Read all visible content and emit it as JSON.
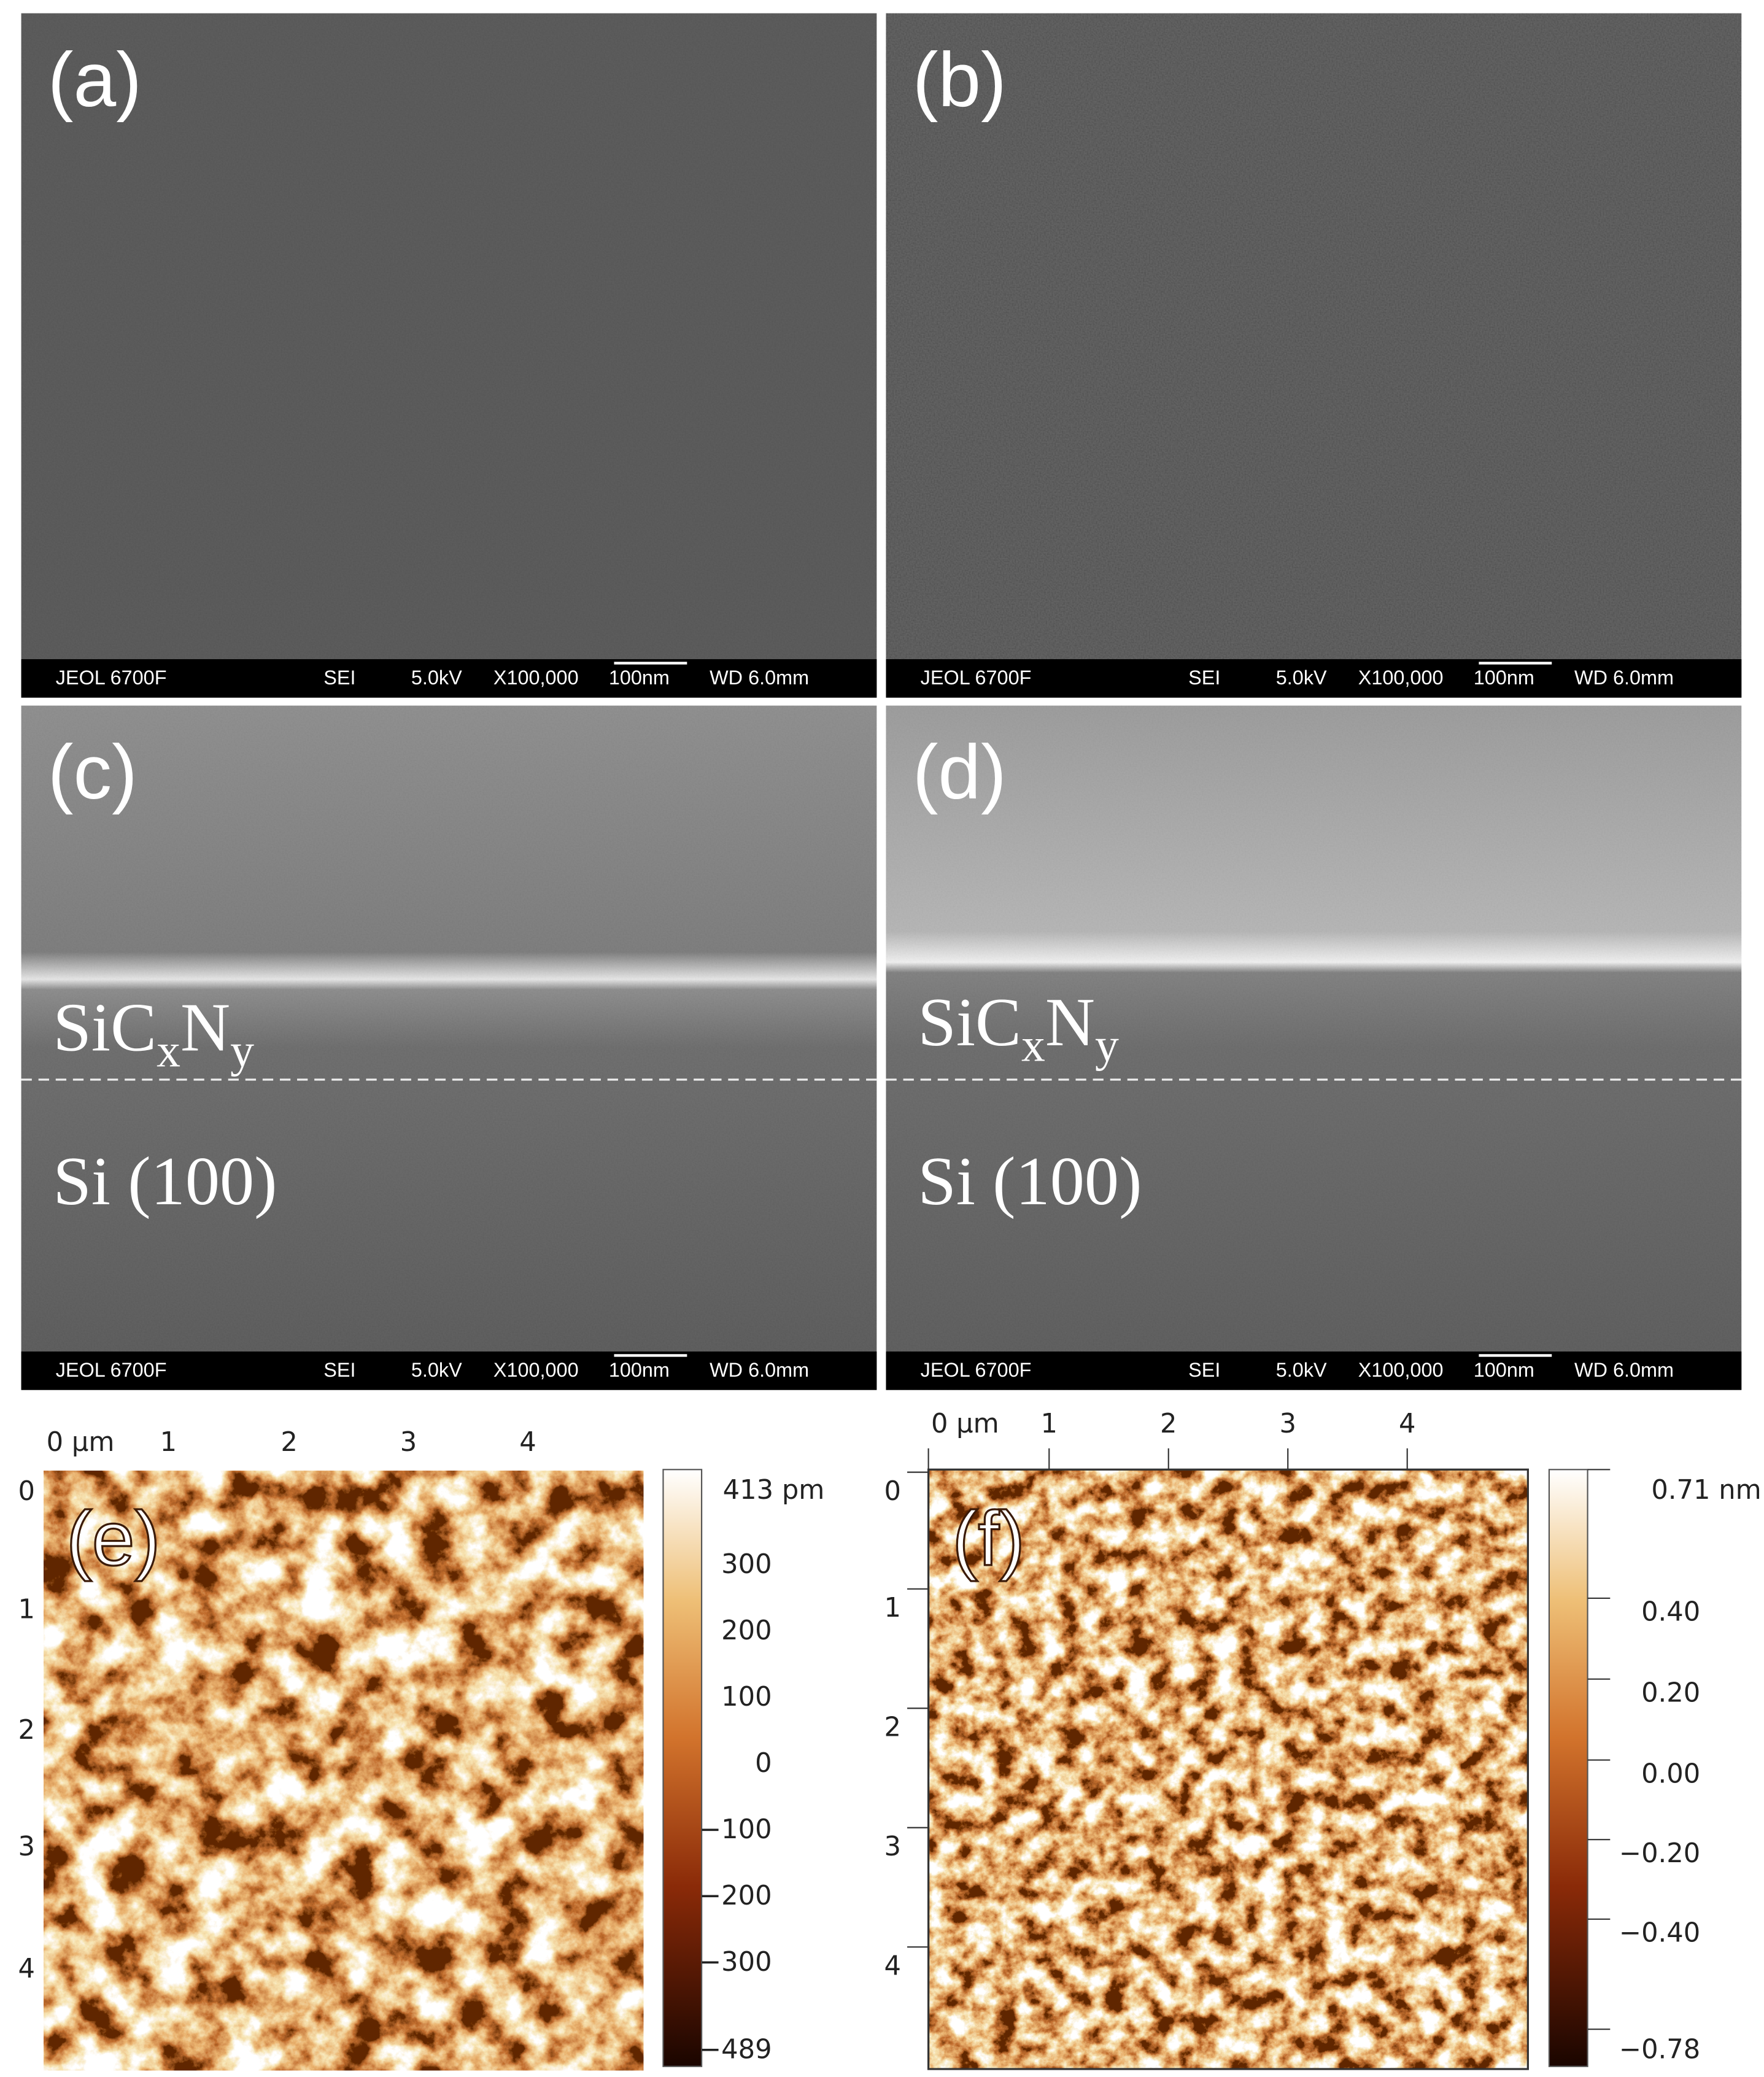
{
  "sem_panels": [
    {
      "label": "(a)"
    },
    {
      "label": "(b)"
    },
    {
      "label": "(c)",
      "film": [
        "SiC",
        "x",
        "N",
        "y"
      ],
      "substrate": "Si (100)"
    },
    {
      "label": "(d)",
      "film": [
        "SiC",
        "x",
        "N",
        "y"
      ],
      "substrate": "Si (100)"
    }
  ],
  "info_bar": [
    "JEOL 6700F",
    "SEI",
    "5.0kV",
    "X100,000",
    "100nm",
    "WD 6.0mm"
  ],
  "afm_panels": [
    {
      "label": "(e)",
      "x_ticks": [
        "0 µm",
        "1",
        "2",
        "3",
        "4"
      ],
      "y_ticks": [
        "0",
        "1",
        "2",
        "3",
        "4"
      ],
      "colorbar_ticks": [
        "413 pm",
        "300",
        "200",
        "100",
        "0",
        "−100",
        "−200",
        "−300",
        "−489"
      ]
    },
    {
      "label": "(f)",
      "x_ticks": [
        "0 µm",
        "1",
        "2",
        "3",
        "4"
      ],
      "y_ticks": [
        "0",
        "1",
        "2",
        "3",
        "4"
      ],
      "colorbar_ticks": [
        "0.71 nm",
        "0.40",
        "0.20",
        "0.00",
        "−0.20",
        "−0.40",
        "−0.78"
      ]
    }
  ]
}
